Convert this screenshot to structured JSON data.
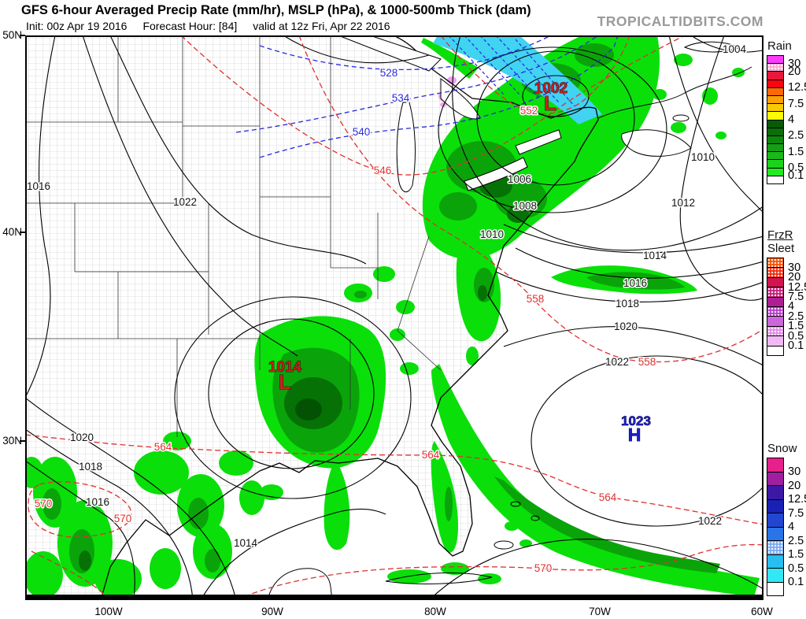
{
  "header": {
    "title": "GFS 6-hour Averaged Precip Rate (mm/hr), MSLP (hPa), & 1000-500mb Thick (dam)",
    "init": "Init: 00z Apr 19 2016",
    "forecast_hour": "Forecast Hour: [84]",
    "valid": "valid at 12z Fri, Apr 22 2016",
    "watermark": "TROPICALTIDBITS.COM"
  },
  "axes": {
    "lat": [
      "50N",
      "40N",
      "30N"
    ],
    "lon": [
      "100W",
      "90W",
      "80W",
      "70W",
      "60W"
    ]
  },
  "map": {
    "mslp_labels": [
      "1004",
      "1006",
      "1008",
      "1010",
      "1010",
      "1012",
      "1016",
      "1022",
      "1014",
      "1016",
      "1018",
      "1020",
      "1022",
      "1020",
      "1018",
      "1016",
      "1022",
      "1014"
    ],
    "thick_red_labels": [
      "552",
      "546",
      "558",
      "558",
      "564",
      "564",
      "564",
      "570",
      "570",
      "570"
    ],
    "thick_blue_labels": [
      "528",
      "534",
      "540"
    ],
    "centers": [
      {
        "value": "1002",
        "symbol": "L",
        "type": "low"
      },
      {
        "value": "1014",
        "symbol": "L",
        "type": "low"
      },
      {
        "value": "1023",
        "symbol": "H",
        "type": "high"
      }
    ]
  },
  "colors": {
    "rain_light": "#0adf0a",
    "rain_mid": "#0aa40a",
    "rain_dark": "#067206",
    "rain_darkest": "#035203",
    "snow_band": "#41d3f2",
    "frzr_pink": "#f0a0f0",
    "isobar": "#000000",
    "thickness_warm": "#e03030",
    "thickness_cold": "#2828e0",
    "low_center": "#cc1e1e",
    "high_center": "#1e1ecc",
    "watermark_gray": "#9a9a9a"
  },
  "legend": {
    "rain": {
      "title": "Rain",
      "boxes": [
        {
          "c": "#f83cf8",
          "l": "30"
        },
        {
          "c": "#fba8d0",
          "s": 1,
          "l": "20"
        },
        {
          "c": "#e8173c"
        },
        {
          "c": "#fb0511",
          "l": "12.5"
        },
        {
          "c": "#fb6a07"
        },
        {
          "c": "#fba005",
          "l": "7.5"
        },
        {
          "c": "#fbc903"
        },
        {
          "c": "#fbfb05",
          "l": "4"
        },
        {
          "c": "#075a07"
        },
        {
          "c": "#0a6f0a",
          "l": "2.5"
        },
        {
          "c": "#0f870f"
        },
        {
          "c": "#14a014",
          "l": "1.5"
        },
        {
          "c": "#18b918"
        },
        {
          "c": "#1dd21d",
          "l": "0.5"
        },
        {
          "c": "#21eb21",
          "l": "0.1"
        },
        {
          "c": "#ffffff"
        }
      ]
    },
    "frzr_sleet": {
      "title_frzr": "FrzR",
      "title_sleet": "Sleet",
      "boxes": [
        {
          "c": "#f85002",
          "s": 1,
          "l": "30"
        },
        {
          "c": "#ef2a12",
          "s": 1,
          "l": "20"
        },
        {
          "c": "#d4144e",
          "l": "12.5"
        },
        {
          "c": "#c41e78",
          "s": 1,
          "l": "7.5"
        },
        {
          "c": "#b01e96",
          "l": "4"
        },
        {
          "c": "#b43cc8",
          "s": 1,
          "l": "2.5"
        },
        {
          "c": "#cd66dc",
          "l": "1.5"
        },
        {
          "c": "#e08ce8",
          "s": 1,
          "l": "0.5"
        },
        {
          "c": "#f2b8f5",
          "l": "0.1"
        },
        {
          "c": "#ffffff"
        }
      ]
    },
    "snow": {
      "title": "Snow",
      "boxes": [
        {
          "c": "#e6218c",
          "l": "30"
        },
        {
          "c": "#a01ea0",
          "l": "20"
        },
        {
          "c": "#3c19a5",
          "l": "12.5"
        },
        {
          "c": "#1921b4",
          "l": "7.5"
        },
        {
          "c": "#2346d2",
          "l": "4"
        },
        {
          "c": "#2874e8",
          "l": "2.5"
        },
        {
          "c": "#78aaf2",
          "s": 1,
          "l": "1.5"
        },
        {
          "c": "#28bef0",
          "l": "0.5"
        },
        {
          "c": "#32e8f5",
          "l": "0.1"
        },
        {
          "c": "#ffffff"
        }
      ]
    }
  }
}
